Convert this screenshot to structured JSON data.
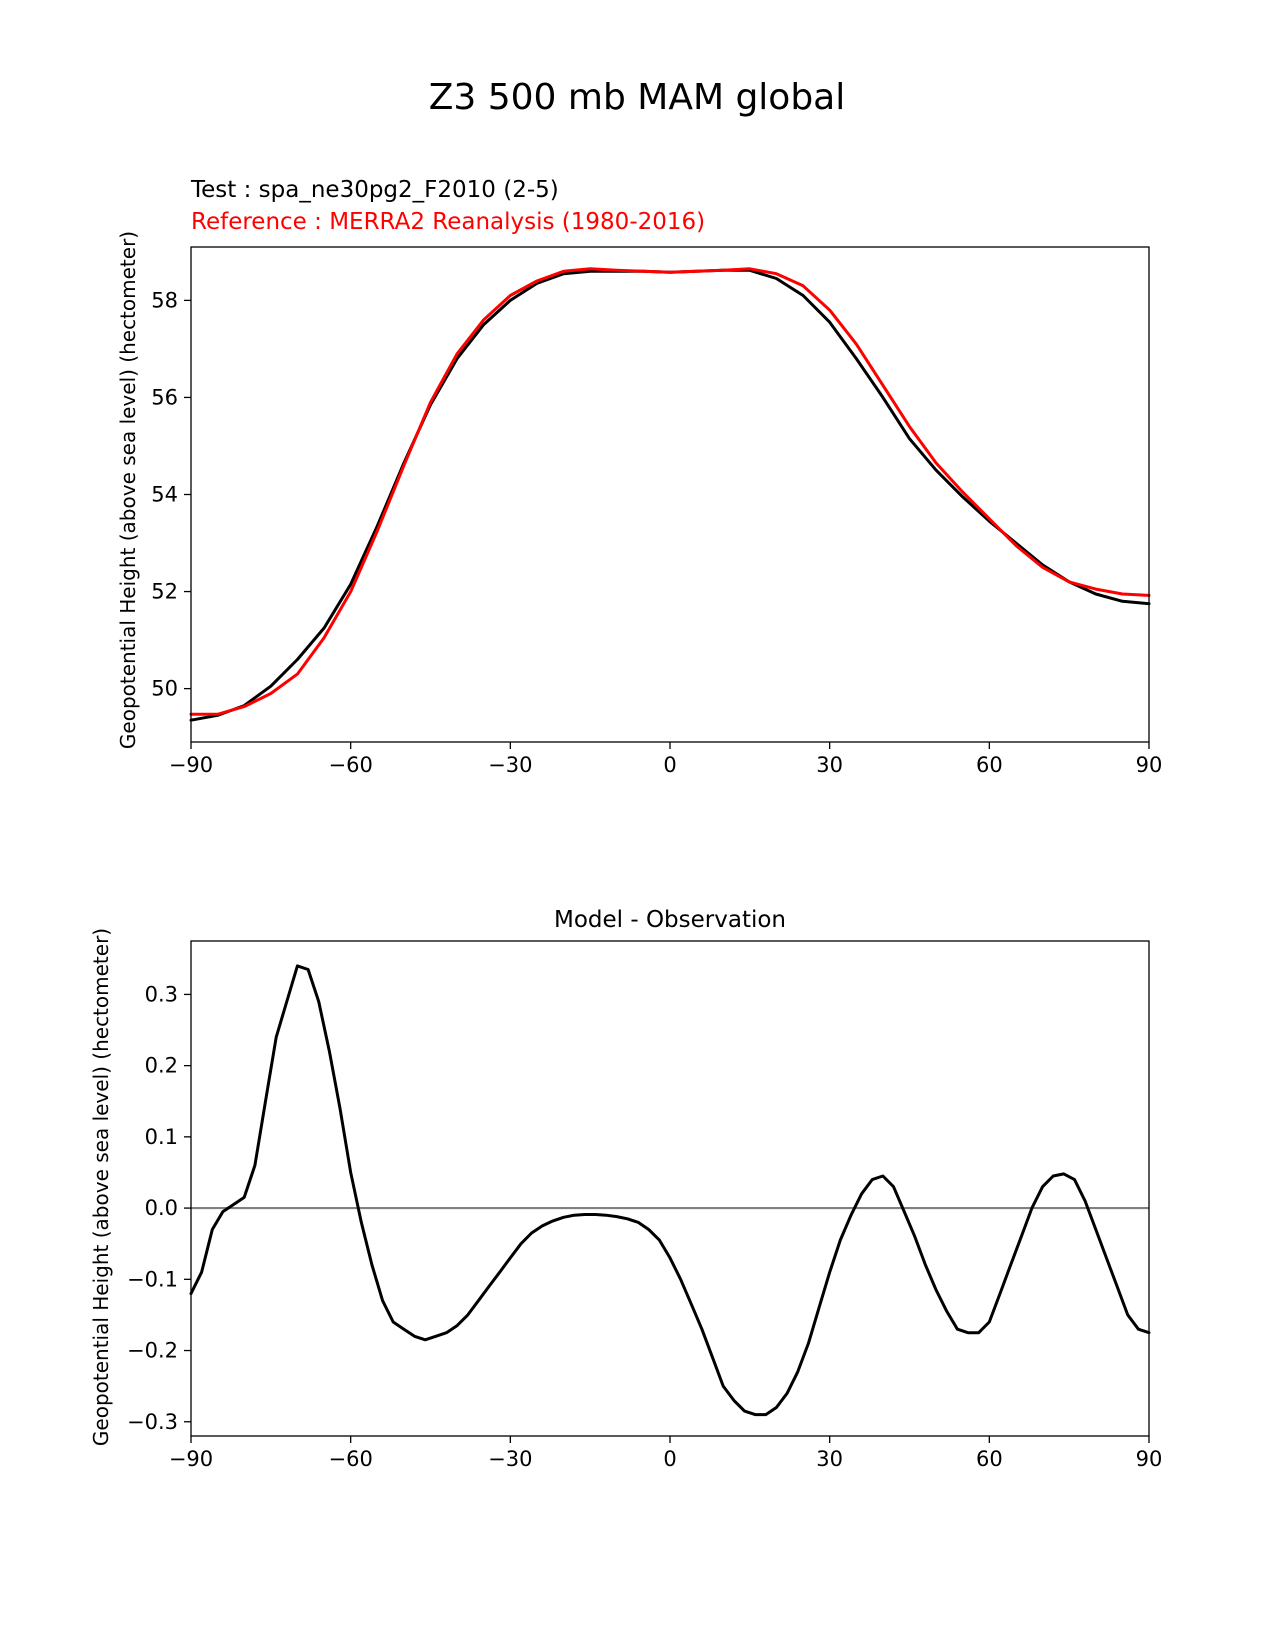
{
  "figure": {
    "title": "Z3 500 mb MAM global"
  },
  "chart_data": [
    {
      "type": "line",
      "test_label": "Test : spa_ne30pg2_F2010 (2-5)",
      "reference_label": "Reference : MERRA2 Reanalysis (1980-2016)",
      "ylabel": "Geopotential Height (above sea level) (hectometer)",
      "xlim": [
        -90,
        90
      ],
      "ylim": [
        48.9,
        59.1
      ],
      "xticks": [
        -90,
        -60,
        -30,
        0,
        30,
        60,
        90
      ],
      "xtick_labels": [
        "−90",
        "−60",
        "−30",
        "0",
        "30",
        "60",
        "90"
      ],
      "yticks": [
        50,
        52,
        54,
        56,
        58
      ],
      "ytick_labels": [
        "50",
        "52",
        "54",
        "56",
        "58"
      ],
      "colors": {
        "test": "#000000",
        "reference": "#ff0000"
      },
      "series": [
        {
          "key": "test",
          "x": [
            -90,
            -85,
            -80,
            -75,
            -70,
            -65,
            -60,
            -55,
            -50,
            -45,
            -40,
            -35,
            -30,
            -25,
            -20,
            -15,
            -10,
            -5,
            0,
            5,
            10,
            15,
            20,
            25,
            30,
            35,
            40,
            45,
            50,
            55,
            60,
            65,
            70,
            75,
            80,
            85,
            90
          ],
          "values": [
            49.35,
            49.45,
            49.65,
            50.05,
            50.6,
            51.25,
            52.15,
            53.35,
            54.65,
            55.85,
            56.8,
            57.5,
            58.0,
            58.35,
            58.55,
            58.6,
            58.6,
            58.6,
            58.58,
            58.6,
            58.62,
            58.62,
            58.45,
            58.1,
            57.55,
            56.8,
            56.0,
            55.15,
            54.5,
            53.95,
            53.45,
            53.0,
            52.55,
            52.2,
            51.95,
            51.8,
            51.75
          ]
        },
        {
          "key": "reference",
          "x": [
            -90,
            -85,
            -80,
            -75,
            -70,
            -65,
            -60,
            -55,
            -50,
            -45,
            -40,
            -35,
            -30,
            -25,
            -20,
            -15,
            -10,
            -5,
            0,
            5,
            10,
            15,
            20,
            25,
            30,
            35,
            40,
            45,
            50,
            55,
            60,
            65,
            70,
            75,
            80,
            85,
            90
          ],
          "values": [
            49.47,
            49.47,
            49.63,
            49.9,
            50.3,
            51.05,
            52.0,
            53.25,
            54.6,
            55.9,
            56.9,
            57.6,
            58.1,
            58.4,
            58.6,
            58.65,
            58.62,
            58.6,
            58.58,
            58.6,
            58.62,
            58.65,
            58.55,
            58.3,
            57.8,
            57.1,
            56.25,
            55.4,
            54.65,
            54.05,
            53.5,
            52.95,
            52.5,
            52.2,
            52.05,
            51.95,
            51.92
          ]
        }
      ]
    },
    {
      "type": "line",
      "title": "Model - Observation",
      "ylabel": "Geopotential Height (above sea level) (hectometer)",
      "xlim": [
        -90,
        90
      ],
      "ylim": [
        -0.32,
        0.375
      ],
      "xticks": [
        -90,
        -60,
        -30,
        0,
        30,
        60,
        90
      ],
      "xtick_labels": [
        "−90",
        "−60",
        "−30",
        "0",
        "30",
        "60",
        "90"
      ],
      "yticks": [
        -0.3,
        -0.2,
        -0.1,
        0.0,
        0.1,
        0.2,
        0.3
      ],
      "ytick_labels": [
        "−0.3",
        "−0.2",
        "−0.1",
        "0.0",
        "0.1",
        "0.2",
        "0.3"
      ],
      "zero_line_color": "#808080",
      "colors": {
        "diff": "#000000"
      },
      "series": [
        {
          "key": "diff",
          "x": [
            -90,
            -88,
            -86,
            -84,
            -82,
            -80,
            -78,
            -76,
            -74,
            -72,
            -70,
            -68,
            -66,
            -64,
            -62,
            -60,
            -58,
            -56,
            -54,
            -52,
            -50,
            -48,
            -46,
            -44,
            -42,
            -40,
            -38,
            -36,
            -34,
            -32,
            -30,
            -28,
            -26,
            -24,
            -22,
            -20,
            -18,
            -16,
            -14,
            -12,
            -10,
            -8,
            -6,
            -4,
            -2,
            0,
            2,
            4,
            6,
            8,
            10,
            12,
            14,
            16,
            18,
            20,
            22,
            24,
            26,
            28,
            30,
            32,
            34,
            36,
            38,
            40,
            42,
            44,
            46,
            48,
            50,
            52,
            54,
            56,
            58,
            60,
            62,
            64,
            66,
            68,
            70,
            72,
            74,
            76,
            78,
            80,
            82,
            84,
            86,
            88,
            90
          ],
          "values": [
            -0.12,
            -0.09,
            -0.03,
            -0.005,
            0.005,
            0.015,
            0.06,
            0.15,
            0.24,
            0.29,
            0.34,
            0.335,
            0.29,
            0.22,
            0.14,
            0.05,
            -0.02,
            -0.08,
            -0.13,
            -0.16,
            -0.17,
            -0.18,
            -0.185,
            -0.18,
            -0.175,
            -0.165,
            -0.15,
            -0.13,
            -0.11,
            -0.09,
            -0.07,
            -0.05,
            -0.035,
            -0.025,
            -0.018,
            -0.013,
            -0.01,
            -0.009,
            -0.009,
            -0.01,
            -0.012,
            -0.015,
            -0.02,
            -0.03,
            -0.045,
            -0.07,
            -0.1,
            -0.135,
            -0.17,
            -0.21,
            -0.25,
            -0.27,
            -0.285,
            -0.29,
            -0.29,
            -0.28,
            -0.26,
            -0.23,
            -0.19,
            -0.14,
            -0.09,
            -0.045,
            -0.01,
            0.02,
            0.04,
            0.045,
            0.03,
            -0.005,
            -0.04,
            -0.08,
            -0.115,
            -0.145,
            -0.17,
            -0.175,
            -0.175,
            -0.16,
            -0.12,
            -0.08,
            -0.04,
            0.0,
            0.03,
            0.045,
            0.048,
            0.04,
            0.01,
            -0.03,
            -0.07,
            -0.11,
            -0.15,
            -0.17,
            -0.175
          ]
        }
      ]
    }
  ]
}
